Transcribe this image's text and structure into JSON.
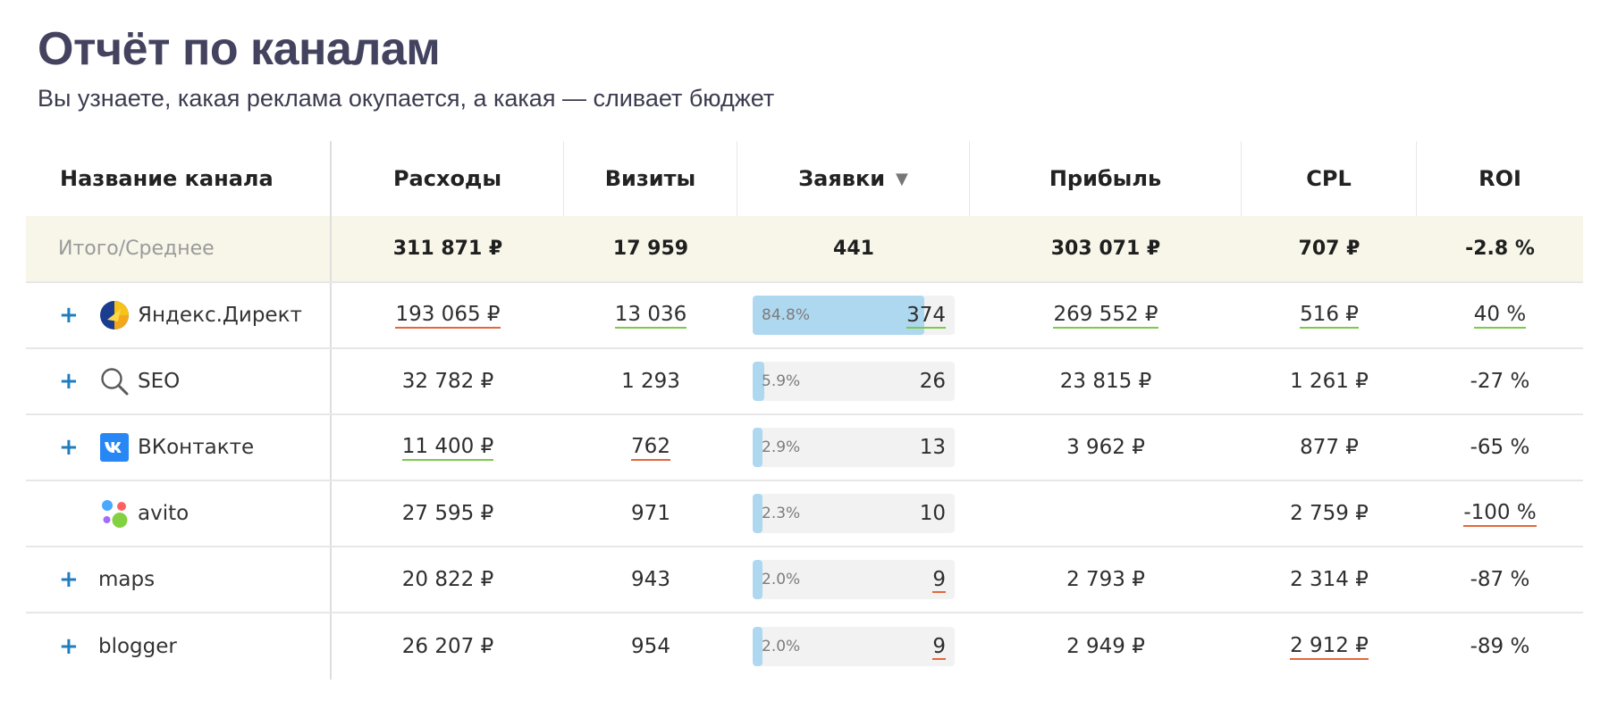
{
  "header": {
    "title": "Отчёт по каналам",
    "subtitle": "Вы узнаете, какая реклама окупается, а какая — сливает бюджет"
  },
  "table": {
    "columns": [
      "Название канала",
      "Расходы",
      "Визиты",
      "Заявки",
      "Прибыль",
      "CPL",
      "ROI"
    ],
    "sort_indicator": "▼",
    "sorted_column": "Заявки",
    "total": {
      "label": "Итого/Среднее",
      "expenses": "311 871 ₽",
      "visits": "17 959",
      "leads": "441",
      "profit": "303 071 ₽",
      "cpl": "707 ₽",
      "roi": "-2.8 %"
    },
    "rows": [
      {
        "name": "Яндекс.Директ",
        "icon": "yandex-direct-icon",
        "expand": "+",
        "expenses": "193 065 ₽",
        "expenses_mark": "red",
        "visits": "13 036",
        "visits_mark": "green",
        "leads_pct": "84.8%",
        "leads_share": 0.848,
        "leads": "374",
        "leads_mark": "green",
        "profit": "269 552 ₽",
        "profit_mark": "green",
        "cpl": "516 ₽",
        "cpl_mark": "green",
        "roi": "40 %",
        "roi_mark": "green"
      },
      {
        "name": "SEO",
        "icon": "search-icon",
        "expand": "+",
        "expenses": "32 782 ₽",
        "expenses_mark": "",
        "visits": "1 293",
        "visits_mark": "",
        "leads_pct": "5.9%",
        "leads_share": 0.059,
        "leads": "26",
        "leads_mark": "",
        "profit": "23 815 ₽",
        "profit_mark": "",
        "cpl": "1 261 ₽",
        "cpl_mark": "",
        "roi": "-27 %",
        "roi_mark": ""
      },
      {
        "name": "ВКонтакте",
        "icon": "vk-icon",
        "expand": "+",
        "expenses": "11 400 ₽",
        "expenses_mark": "green",
        "visits": "762",
        "visits_mark": "red",
        "leads_pct": "2.9%",
        "leads_share": 0.029,
        "leads": "13",
        "leads_mark": "",
        "profit": "3 962 ₽",
        "profit_mark": "",
        "cpl": "877 ₽",
        "cpl_mark": "",
        "roi": "-65 %",
        "roi_mark": ""
      },
      {
        "name": "avito",
        "icon": "avito-icon",
        "expand": "",
        "expenses": "27 595 ₽",
        "expenses_mark": "",
        "visits": "971",
        "visits_mark": "",
        "leads_pct": "2.3%",
        "leads_share": 0.023,
        "leads": "10",
        "leads_mark": "",
        "profit": "",
        "profit_mark": "",
        "cpl": "2 759 ₽",
        "cpl_mark": "",
        "roi": "-100 %",
        "roi_mark": "red"
      },
      {
        "name": "maps",
        "icon": "",
        "expand": "+",
        "expenses": "20 822 ₽",
        "expenses_mark": "",
        "visits": "943",
        "visits_mark": "",
        "leads_pct": "2.0%",
        "leads_share": 0.02,
        "leads": "9",
        "leads_mark": "red",
        "profit": "2 793 ₽",
        "profit_mark": "",
        "cpl": "2 314 ₽",
        "cpl_mark": "",
        "roi": "-87 %",
        "roi_mark": ""
      },
      {
        "name": "blogger",
        "icon": "",
        "expand": "+",
        "expenses": "26 207 ₽",
        "expenses_mark": "",
        "visits": "954",
        "visits_mark": "",
        "leads_pct": "2.0%",
        "leads_share": 0.02,
        "leads": "9",
        "leads_mark": "red",
        "profit": "2 949 ₽",
        "profit_mark": "",
        "cpl": "2 912 ₽",
        "cpl_mark": "red",
        "roi": "-89 %",
        "roi_mark": ""
      }
    ]
  },
  "colors": {
    "title": "#43435f",
    "expand": "#1f7ec0",
    "bar_fill": "#aed8f0",
    "total_row_bg": "#f8f6e9",
    "underline_red": "#e3673b",
    "underline_green": "#7ec94a"
  }
}
